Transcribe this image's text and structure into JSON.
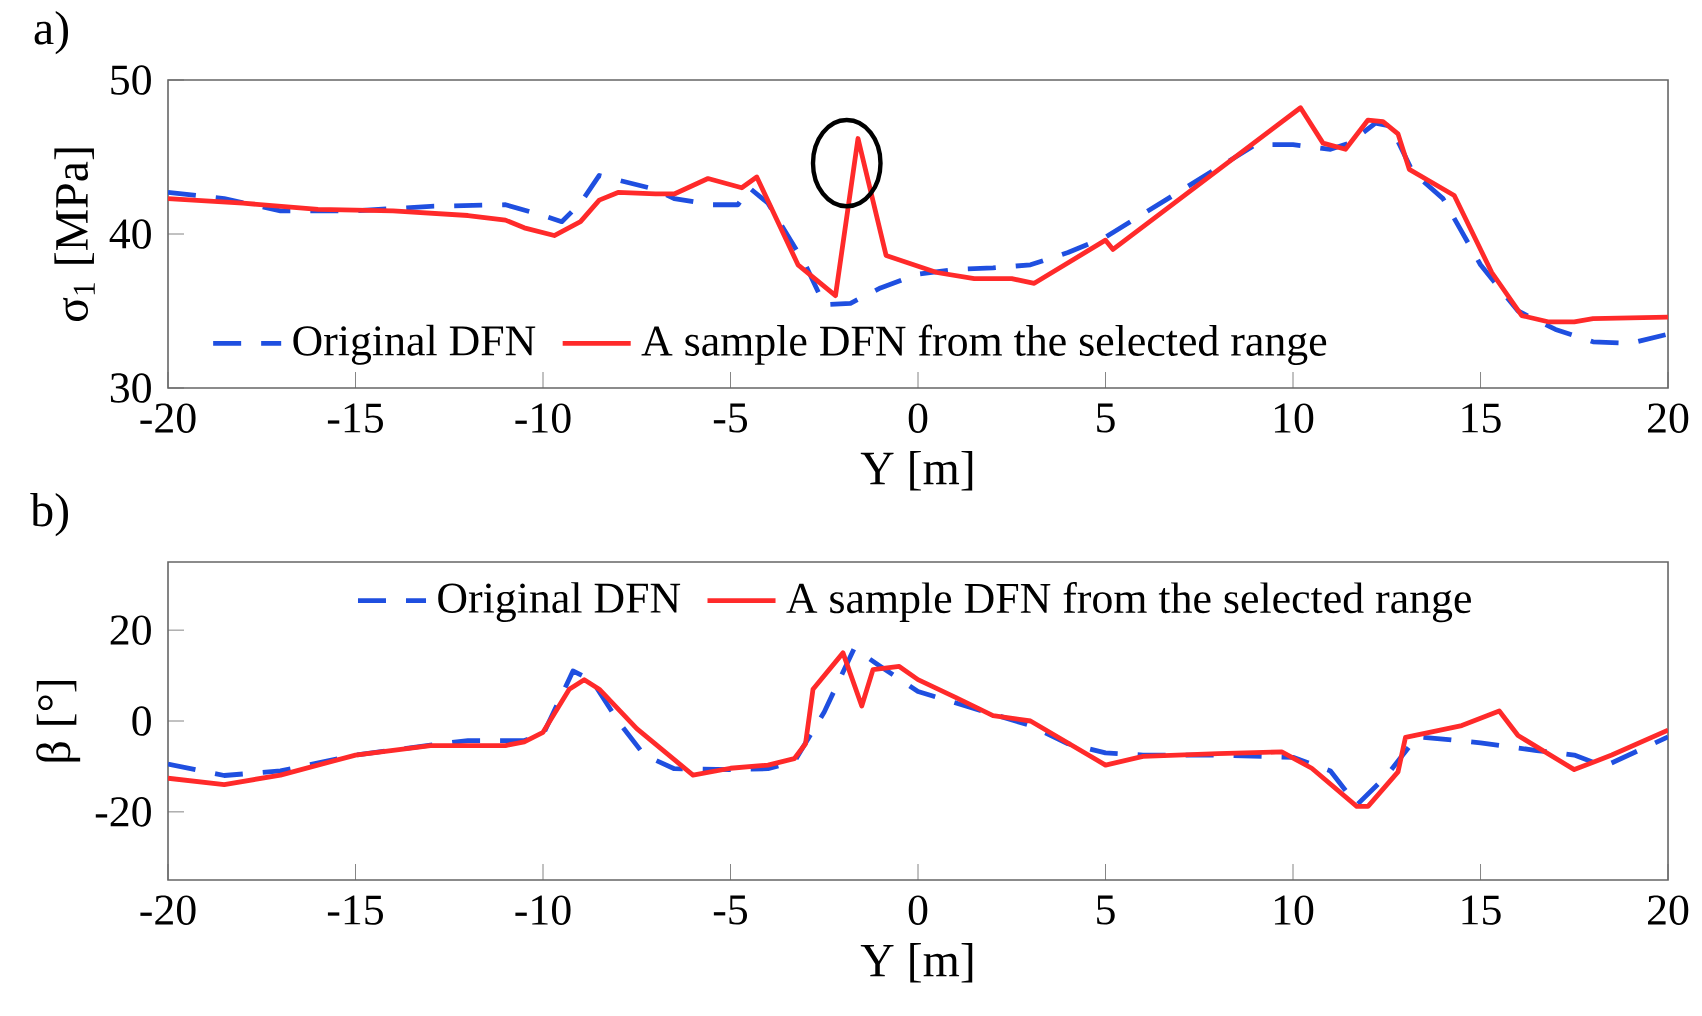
{
  "chart_data": [
    {
      "type": "line",
      "title": "a)",
      "xlabel": "Y [m]",
      "ylabel": "σ$_{1}$ [MPa]",
      "xlim": [
        -20,
        20
      ],
      "ylim": [
        30,
        50
      ],
      "xticks": [
        -20,
        -15,
        -10,
        -5,
        0,
        5,
        10,
        15,
        20
      ],
      "yticks": [
        30,
        40,
        50
      ],
      "legend": "bottom left",
      "grid": false,
      "marker": "none",
      "series": [
        {
          "name": "Original DFN",
          "color": "#1f4fe0",
          "line_style": "dashed",
          "x": [
            -20,
            -18.5,
            -17,
            -15,
            -13,
            -11,
            -10,
            -9.5,
            -9,
            -8.5,
            -7,
            -6.5,
            -5.5,
            -4.8,
            -4.5,
            -4,
            -3,
            -2.5,
            -1.8,
            -1,
            0,
            1,
            2,
            3,
            4,
            5,
            6,
            7,
            8,
            9,
            10,
            11,
            11.5,
            12.2,
            12.6,
            13.2,
            14,
            15,
            16,
            17,
            18,
            19,
            20
          ],
          "values": [
            42.7,
            42.3,
            41.5,
            41.5,
            41.8,
            41.9,
            41.2,
            40.8,
            42,
            43.8,
            42.9,
            42.3,
            41.9,
            41.9,
            43,
            42,
            38,
            35.4,
            35.5,
            36.5,
            37.4,
            37.7,
            37.8,
            38,
            38.8,
            39.8,
            41.3,
            42.8,
            44.3,
            45.8,
            45.8,
            45.5,
            45.9,
            47.2,
            47,
            44,
            42.3,
            38,
            35,
            33.8,
            33,
            32.9,
            33.5
          ]
        },
        {
          "name": "A sample DFN from the selected range",
          "color": "#ff2a2a",
          "line_style": "solid",
          "x": [
            -20,
            -18,
            -16,
            -14,
            -12,
            -11,
            -10.5,
            -9.7,
            -9,
            -8.5,
            -8,
            -7,
            -6.5,
            -5.6,
            -4.7,
            -4.3,
            -3.2,
            -2.2,
            -1.6,
            -0.85,
            0.5,
            1.5,
            2.5,
            3.1,
            5,
            5.2,
            10.2,
            10.8,
            11.4,
            12,
            12.4,
            12.8,
            13.1,
            14.3,
            15.3,
            16.1,
            16.8,
            17.5,
            18,
            20
          ],
          "values": [
            42.3,
            42,
            41.6,
            41.5,
            41.2,
            40.9,
            40.4,
            39.9,
            40.8,
            42.2,
            42.7,
            42.6,
            42.6,
            43.6,
            43,
            43.7,
            38,
            36,
            46.2,
            38.6,
            37.5,
            37.1,
            37.1,
            36.8,
            39.6,
            39,
            48.2,
            45.9,
            45.5,
            47.4,
            47.3,
            46.5,
            44.2,
            42.5,
            37.5,
            34.7,
            34.3,
            34.3,
            34.5,
            34.6
          ]
        }
      ]
    },
    {
      "type": "line",
      "title": "b)",
      "xlabel": "Y [m]",
      "ylabel": "β [°]",
      "xlim": [
        -20,
        20
      ],
      "ylim": [
        -35,
        35
      ],
      "xticks": [
        -20,
        -15,
        -10,
        -5,
        0,
        5,
        10,
        15,
        20
      ],
      "yticks": [
        -20,
        0,
        20
      ],
      "legend": "top",
      "grid": false,
      "marker": "none",
      "series": [
        {
          "name": "Original DFN",
          "color": "#1f4fe0",
          "line_style": "dashed",
          "x": [
            -20,
            -18.5,
            -17,
            -15,
            -13,
            -12,
            -10.5,
            -10,
            -9.2,
            -8.7,
            -8,
            -7.3,
            -6.5,
            -5,
            -4,
            -3.3,
            -2.5,
            -1.7,
            -1,
            0,
            1,
            2,
            3,
            4,
            5,
            6,
            8,
            10,
            11,
            11.7,
            12.5,
            13.3,
            14,
            15,
            16.5,
            17.5,
            18.3,
            20
          ],
          "values": [
            -9.5,
            -12,
            -11,
            -7.5,
            -5.3,
            -4.3,
            -4.3,
            -3,
            11,
            9,
            0,
            -7.5,
            -10.5,
            -10.7,
            -10.5,
            -9,
            2,
            16,
            12,
            6.5,
            4,
            1.5,
            -1,
            -5,
            -7,
            -7.5,
            -7.5,
            -8,
            -11,
            -18.5,
            -12,
            -3.5,
            -4,
            -4.8,
            -6.5,
            -7.5,
            -10,
            -3.5
          ]
        },
        {
          "name": "A sample DFN from the selected range",
          "color": "#ff2a2a",
          "line_style": "solid",
          "x": [
            -20,
            -18.5,
            -17,
            -15,
            -13,
            -11,
            -10.5,
            -10,
            -9.3,
            -8.9,
            -8.5,
            -7.5,
            -6,
            -5,
            -4,
            -3.3,
            -3,
            -2.8,
            -2,
            -1.5,
            -1.2,
            -0.5,
            0,
            1,
            2,
            3,
            5,
            6,
            8,
            9.7,
            10.5,
            11.7,
            12,
            12.8,
            13,
            14.5,
            15.5,
            16,
            17.5,
            18.5,
            20
          ],
          "values": [
            -12.6,
            -14,
            -11.9,
            -7.5,
            -5.4,
            -5.4,
            -4.6,
            -2.5,
            7,
            9.1,
            7,
            -1.7,
            -11.9,
            -10.4,
            -9.7,
            -8.3,
            -5,
            7,
            15,
            3.3,
            11.3,
            12,
            9.1,
            5.2,
            1.2,
            0,
            -9.7,
            -7.8,
            -7.2,
            -6.8,
            -10.4,
            -18.8,
            -18.8,
            -11.2,
            -3.6,
            -1,
            2.2,
            -3.2,
            -10.7,
            -7.5,
            -2
          ]
        }
      ]
    }
  ]
}
